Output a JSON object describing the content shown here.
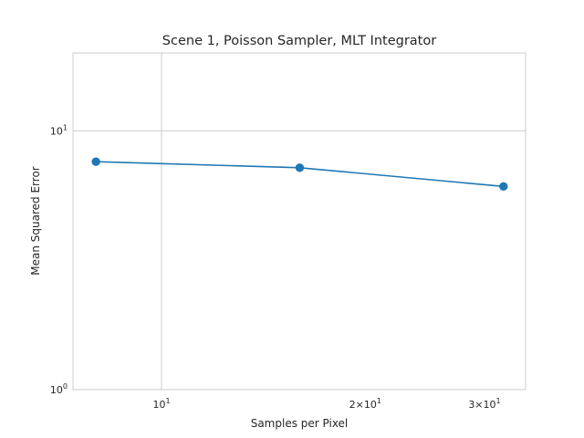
{
  "chart_data": {
    "type": "line",
    "title": "Scene 1, Poisson Sampler, MLT Integrator",
    "xlabel": "Samples per Pixel",
    "ylabel": "Mean Squared Error",
    "xscale": "log",
    "yscale": "log",
    "xlim": [
      7.4,
      34.5
    ],
    "ylim": [
      1,
      20
    ],
    "grid": true,
    "series": [
      {
        "color": "#1f77b4",
        "marker": "circle",
        "x": [
          8,
          16,
          32
        ],
        "y": [
          7.6,
          7.2,
          6.1
        ]
      }
    ],
    "xticks": [
      {
        "value": 10,
        "mantissa": "",
        "times": "",
        "base": "10",
        "exp": "1"
      },
      {
        "value": 20,
        "mantissa": "2",
        "times": "×",
        "base": "10",
        "exp": "1"
      },
      {
        "value": 30,
        "mantissa": "3",
        "times": "×",
        "base": "10",
        "exp": "1"
      }
    ],
    "yticks": [
      {
        "value": 1,
        "base": "10",
        "exp": "0"
      },
      {
        "value": 10,
        "base": "10",
        "exp": "1"
      }
    ]
  }
}
